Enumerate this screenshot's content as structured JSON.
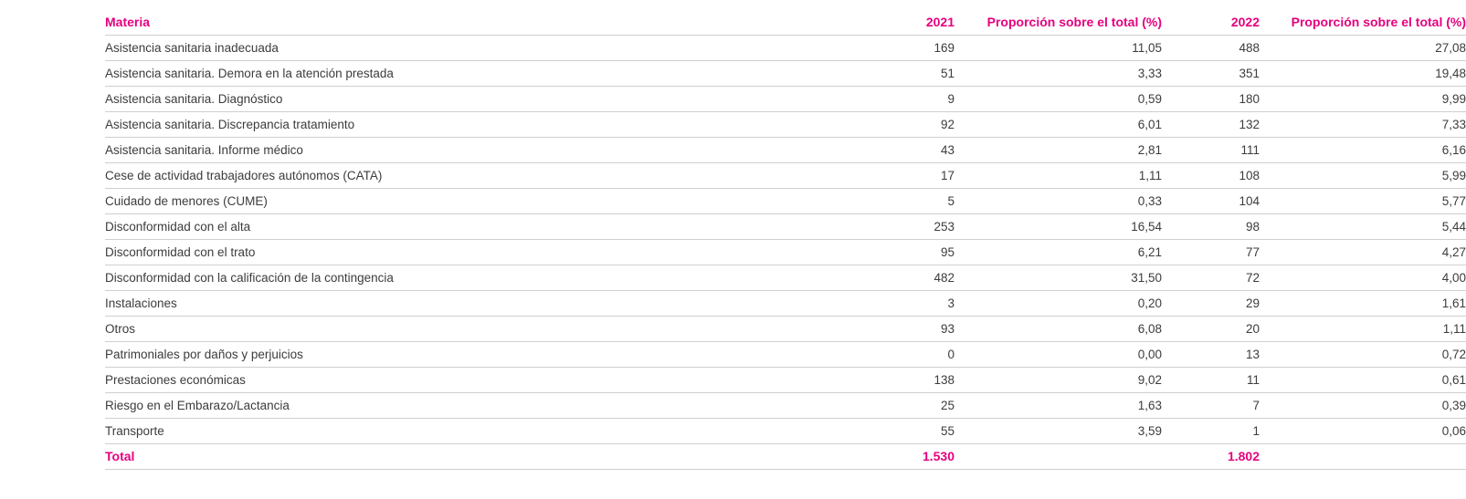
{
  "colors": {
    "accent": "#e5007e",
    "text": "#3c3c3c",
    "rule": "#cfcfcf"
  },
  "table": {
    "headers": {
      "materia": "Materia",
      "y2021": "2021",
      "prop2021": "Proporción sobre el total (%)",
      "y2022": "2022",
      "prop2022": "Proporción sobre el total (%)"
    },
    "rows": [
      {
        "materia": "Asistencia sanitaria inadecuada",
        "y2021": "169",
        "prop2021": "11,05",
        "y2022": "488",
        "prop2022": "27,08"
      },
      {
        "materia": "Asistencia sanitaria. Demora en la atención prestada",
        "y2021": "51",
        "prop2021": "3,33",
        "y2022": "351",
        "prop2022": "19,48"
      },
      {
        "materia": "Asistencia sanitaria. Diagnóstico",
        "y2021": "9",
        "prop2021": "0,59",
        "y2022": "180",
        "prop2022": "9,99"
      },
      {
        "materia": "Asistencia sanitaria. Discrepancia tratamiento",
        "y2021": "92",
        "prop2021": "6,01",
        "y2022": "132",
        "prop2022": "7,33"
      },
      {
        "materia": "Asistencia sanitaria. Informe médico",
        "y2021": "43",
        "prop2021": "2,81",
        "y2022": "111",
        "prop2022": "6,16"
      },
      {
        "materia": "Cese de actividad trabajadores autónomos (CATA)",
        "y2021": "17",
        "prop2021": "1,11",
        "y2022": "108",
        "prop2022": "5,99"
      },
      {
        "materia": "Cuidado de menores (CUME)",
        "y2021": "5",
        "prop2021": "0,33",
        "y2022": "104",
        "prop2022": "5,77"
      },
      {
        "materia": "Disconformidad con el alta",
        "y2021": "253",
        "prop2021": "16,54",
        "y2022": "98",
        "prop2022": "5,44"
      },
      {
        "materia": "Disconformidad con el trato",
        "y2021": "95",
        "prop2021": "6,21",
        "y2022": "77",
        "prop2022": "4,27"
      },
      {
        "materia": "Disconformidad con la calificación de la contingencia",
        "y2021": "482",
        "prop2021": "31,50",
        "y2022": "72",
        "prop2022": "4,00"
      },
      {
        "materia": "Instalaciones",
        "y2021": "3",
        "prop2021": "0,20",
        "y2022": "29",
        "prop2022": "1,61"
      },
      {
        "materia": "Otros",
        "y2021": "93",
        "prop2021": "6,08",
        "y2022": "20",
        "prop2022": "1,11"
      },
      {
        "materia": "Patrimoniales por daños y perjuicios",
        "y2021": "0",
        "prop2021": "0,00",
        "y2022": "13",
        "prop2022": "0,72"
      },
      {
        "materia": "Prestaciones económicas",
        "y2021": "138",
        "prop2021": "9,02",
        "y2022": "11",
        "prop2022": "0,61"
      },
      {
        "materia": "Riesgo en el Embarazo/Lactancia",
        "y2021": "25",
        "prop2021": "1,63",
        "y2022": "7",
        "prop2022": "0,39"
      },
      {
        "materia": "Transporte",
        "y2021": "55",
        "prop2021": "3,59",
        "y2022": "1",
        "prop2022": "0,06"
      }
    ],
    "total": {
      "label": "Total",
      "y2021": "1.530",
      "prop2021": "",
      "y2022": "1.802",
      "prop2022": ""
    }
  }
}
